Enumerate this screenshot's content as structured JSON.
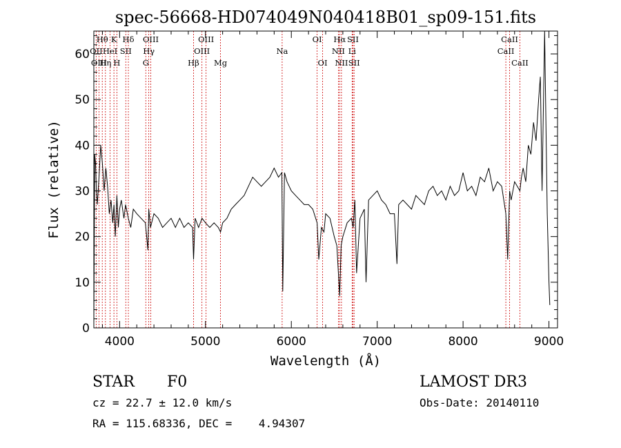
{
  "chart_data": {
    "type": "line",
    "title": "spec-56668-HD074049N040418B01_sp09-151.fits",
    "xlabel": "Wavelength (Å)",
    "ylabel": "Flux (relative)",
    "xlim": [
      3700,
      9100
    ],
    "ylim": [
      0,
      65
    ],
    "xticks": [
      "4000",
      "5000",
      "6000",
      "7000",
      "8000",
      "9000"
    ],
    "yticks": [
      "0",
      "10",
      "20",
      "30",
      "40",
      "50",
      "60"
    ],
    "grid": false,
    "series": [
      {
        "x": [
          3700,
          3710,
          3720,
          3730,
          3740,
          3760,
          3780,
          3800,
          3820,
          3840,
          3860,
          3880,
          3900,
          3920,
          3935,
          3950,
          3968,
          3985,
          4000,
          4020,
          4050,
          4070,
          4102,
          4130,
          4160,
          4200,
          4250,
          4300,
          4330,
          4340,
          4360,
          4400,
          4450,
          4500,
          4550,
          4600,
          4650,
          4700,
          4750,
          4800,
          4850,
          4861,
          4880,
          4920,
          4960,
          5000,
          5050,
          5100,
          5150,
          5175,
          5200,
          5250,
          5300,
          5350,
          5400,
          5450,
          5500,
          5550,
          5600,
          5650,
          5700,
          5750,
          5800,
          5850,
          5890,
          5900,
          5920,
          5950,
          6000,
          6050,
          6100,
          6150,
          6200,
          6250,
          6300,
          6320,
          6350,
          6380,
          6400,
          6450,
          6500,
          6530,
          6563,
          6580,
          6600,
          6650,
          6700,
          6720,
          6740,
          6760,
          6800,
          6850,
          6870,
          6900,
          6950,
          7000,
          7050,
          7100,
          7150,
          7200,
          7230,
          7250,
          7300,
          7350,
          7400,
          7450,
          7500,
          7550,
          7600,
          7650,
          7700,
          7750,
          7800,
          7850,
          7900,
          7950,
          8000,
          8050,
          8100,
          8150,
          8200,
          8250,
          8300,
          8350,
          8400,
          8450,
          8498,
          8520,
          8542,
          8560,
          8600,
          8662,
          8680,
          8700,
          8730,
          8760,
          8790,
          8820,
          8850,
          8880,
          8900,
          8920,
          8950,
          8980,
          9000,
          9010
        ],
        "y": [
          1,
          38,
          36,
          30,
          27,
          33,
          40,
          36,
          30,
          35,
          31,
          25,
          28,
          23,
          27,
          20,
          29,
          22,
          26,
          28,
          24,
          27,
          24,
          22,
          26,
          25,
          24,
          23,
          17,
          26,
          22,
          25,
          24,
          22,
          23,
          24,
          22,
          24,
          22,
          23,
          22,
          15,
          24,
          22,
          24,
          23,
          22,
          23,
          22,
          21,
          23,
          24,
          26,
          27,
          28,
          29,
          31,
          33,
          32,
          31,
          32,
          33,
          35,
          33,
          34,
          8,
          34,
          32,
          30,
          29,
          28,
          27,
          27,
          26,
          23,
          15,
          22,
          21,
          25,
          24,
          20,
          18,
          7,
          18,
          20,
          23,
          24,
          22,
          28,
          12,
          24,
          26,
          10,
          28,
          29,
          30,
          28,
          27,
          25,
          25,
          14,
          27,
          28,
          27,
          26,
          29,
          28,
          27,
          30,
          31,
          29,
          30,
          28,
          31,
          29,
          30,
          34,
          30,
          31,
          29,
          33,
          32,
          35,
          30,
          32,
          31,
          25,
          15,
          30,
          28,
          32,
          30,
          33,
          35,
          32,
          40,
          38,
          45,
          41,
          50,
          55,
          30,
          65,
          25,
          10,
          5
        ]
      }
    ],
    "emission_lines": [
      {
        "label": "Hθ",
        "x": 3798,
        "row": 1
      },
      {
        "label": "OII",
        "x": 3727,
        "row": 2
      },
      {
        "label": "OIII",
        "x": 3760,
        "row": 3
      },
      {
        "label": "Hη",
        "x": 3835,
        "row": 3
      },
      {
        "label": "K",
        "x": 3934,
        "row": 1
      },
      {
        "label": "HeI",
        "x": 3889,
        "row": 2
      },
      {
        "label": "H",
        "x": 3968,
        "row": 3
      },
      {
        "label": "SII",
        "x": 4072,
        "row": 2
      },
      {
        "label": "Hδ",
        "x": 4102,
        "row": 1
      },
      {
        "label": "OIII",
        "x": 4363,
        "row": 1
      },
      {
        "label": "Hγ",
        "x": 4340,
        "row": 2
      },
      {
        "label": "G",
        "x": 4305,
        "row": 3
      },
      {
        "label": "Hβ",
        "x": 4861,
        "row": 3
      },
      {
        "label": "OIII",
        "x": 5007,
        "row": 1
      },
      {
        "label": "OIII",
        "x": 4959,
        "row": 2
      },
      {
        "label": "Mg",
        "x": 5175,
        "row": 3
      },
      {
        "label": "Na",
        "x": 5893,
        "row": 2
      },
      {
        "label": "OI",
        "x": 6300,
        "row": 1
      },
      {
        "label": "OI",
        "x": 6364,
        "row": 3
      },
      {
        "label": "Hα",
        "x": 6563,
        "row": 1
      },
      {
        "label": "NII",
        "x": 6548,
        "row": 2
      },
      {
        "label": "NII",
        "x": 6584,
        "row": 3
      },
      {
        "label": "SII",
        "x": 6717,
        "row": 1
      },
      {
        "label": "Li",
        "x": 6708,
        "row": 2
      },
      {
        "label": "SII",
        "x": 6731,
        "row": 3
      },
      {
        "label": "CaII",
        "x": 8542,
        "row": 1
      },
      {
        "label": "CaII",
        "x": 8498,
        "row": 2
      },
      {
        "label": "CaII",
        "x": 8662,
        "row": 3
      }
    ]
  },
  "info": {
    "class": "STAR",
    "subclass": "F0",
    "survey": "LAMOST DR3",
    "cz": "cz = 22.7 ± 12.0 km/s",
    "obsdate": "Obs-Date: 20140110",
    "coords": "RA = 115.68336, DEC =    4.94307"
  },
  "colors": {
    "spectrum": "#000000",
    "line_markers": "#cc0000",
    "axes": "#000000"
  }
}
